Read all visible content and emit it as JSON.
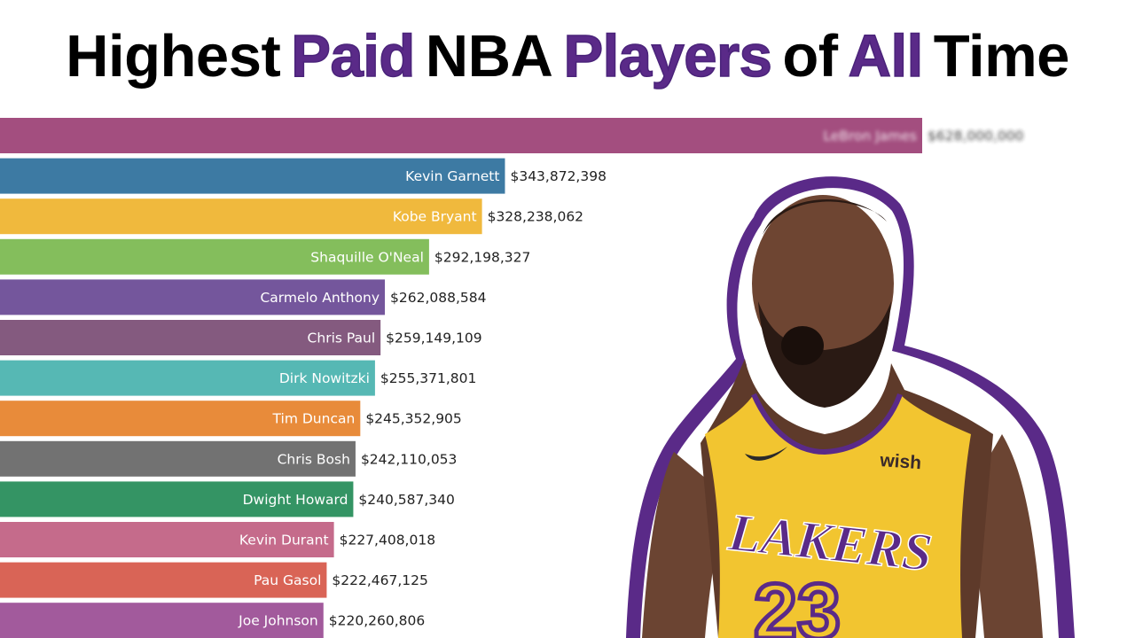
{
  "title": {
    "words": [
      {
        "text": "Highest",
        "color": "#000000"
      },
      {
        "text": "Paid",
        "color": "#5a2a88"
      },
      {
        "text": "NBA",
        "color": "#000000"
      },
      {
        "text": "Players",
        "color": "#5a2a88"
      },
      {
        "text": "of",
        "color": "#000000"
      },
      {
        "text": "All",
        "color": "#5a2a88"
      },
      {
        "text": "Time",
        "color": "#000000"
      }
    ]
  },
  "photo": {
    "jersey_team": "LAKERS",
    "jersey_number": "23",
    "jersey_sponsor": "wish",
    "outline_color": "#5a2a88",
    "jersey_color": "#f2c530"
  },
  "chart_data": {
    "type": "bar",
    "orientation": "horizontal",
    "title": "Highest Paid NBA Players of All Time",
    "xlabel": "",
    "ylabel": "",
    "grid": false,
    "categories": [
      "LeBron James",
      "Kevin Garnett",
      "Kobe Bryant",
      "Shaquille O'Neal",
      "Carmelo Anthony",
      "Chris Paul",
      "Dirk Nowitzki",
      "Tim Duncan",
      "Chris Bosh",
      "Dwight Howard",
      "Kevin Durant",
      "Pau Gasol",
      "Joe Johnson"
    ],
    "values": [
      628000000,
      343872398,
      328238062,
      292198327,
      262088584,
      259149109,
      255371801,
      245352905,
      242110053,
      240587340,
      227408018,
      222467125,
      220260806
    ],
    "value_labels": [
      "$628,000,000",
      "$343,872,398",
      "$328,238,062",
      "$292,198,327",
      "$262,088,584",
      "$259,149,109",
      "$255,371,801",
      "$245,352,905",
      "$242,110,053",
      "$240,587,340",
      "$227,408,018",
      "$222,467,125",
      "$220,260,806"
    ],
    "colors": [
      "#a34e7f",
      "#3d7aa3",
      "#f0b93d",
      "#84be5c",
      "#74569c",
      "#845a7f",
      "#56b8b4",
      "#e88b3a",
      "#727272",
      "#349464",
      "#c56b8b",
      "#d96456",
      "#a25a9c"
    ],
    "blurred": [
      true,
      false,
      false,
      false,
      false,
      false,
      false,
      false,
      false,
      false,
      false,
      false,
      false
    ]
  }
}
